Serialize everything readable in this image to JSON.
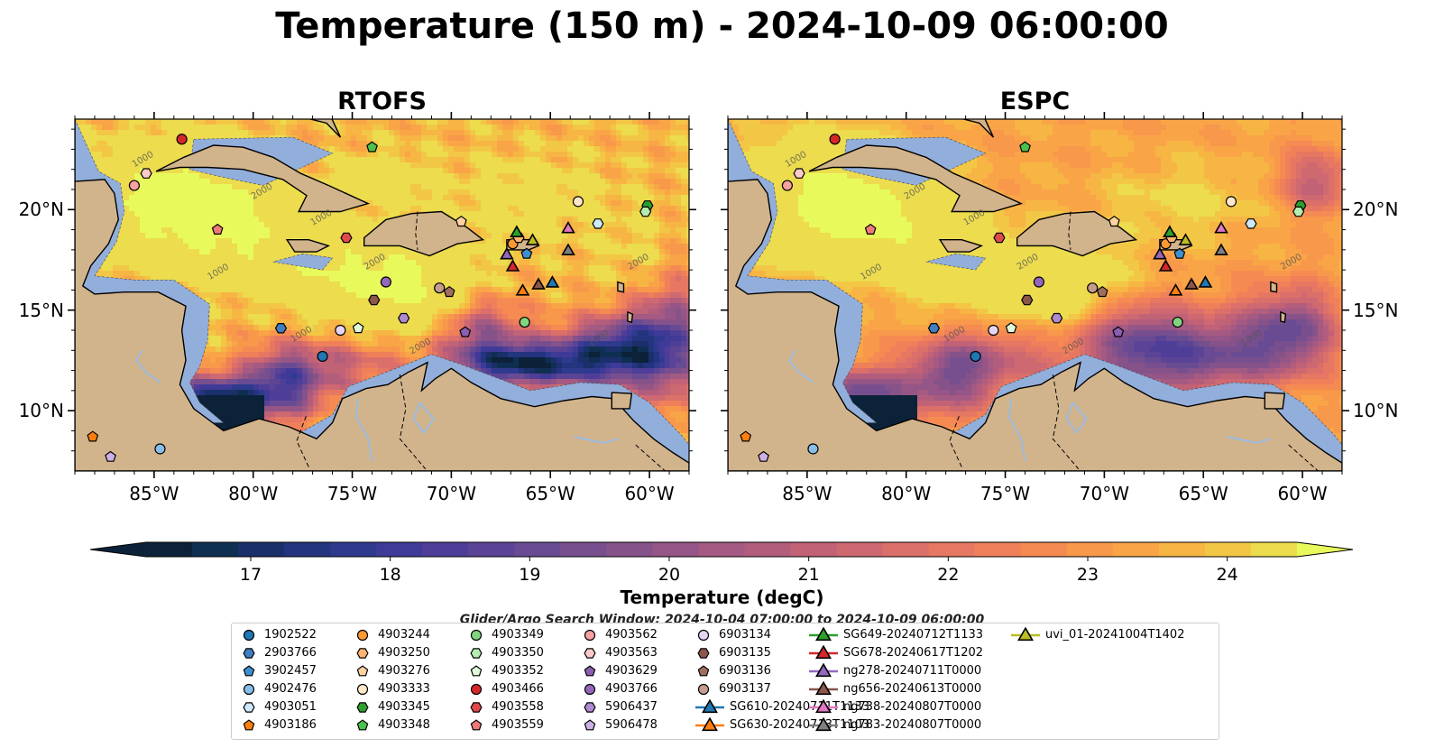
{
  "title": "Temperature (150 m) - 2024-10-09 06:00:00",
  "panels": [
    {
      "title": "RTOFS",
      "variant": "rtofs"
    },
    {
      "title": "ESPC",
      "variant": "espc"
    }
  ],
  "lat_labels": [
    "20°N",
    "15°N",
    "10°N"
  ],
  "lat_values": [
    20,
    15,
    10
  ],
  "lon_labels": [
    "85°W",
    "80°W",
    "75°W",
    "70°W",
    "65°W",
    "60°W"
  ],
  "lon_values": [
    -85,
    -80,
    -75,
    -70,
    -65,
    -60
  ],
  "map_extent": {
    "lon": [
      -89,
      -58
    ],
    "lat": [
      7,
      24.5
    ]
  },
  "contour_labels": [
    "1000",
    "2000"
  ],
  "colorbar": {
    "label": "Temperature (degC)",
    "min": 16.25,
    "max": 24.5,
    "step": 0.25,
    "ticks": [
      17,
      18,
      19,
      20,
      21,
      22,
      23,
      24
    ],
    "tick_labels": [
      "17",
      "18",
      "19",
      "20",
      "21",
      "22",
      "23",
      "24"
    ],
    "colors": [
      "#0b2239",
      "#0f2f52",
      "#1b2f6b",
      "#24347f",
      "#2f3a8f",
      "#3f3a97",
      "#4f3e98",
      "#5b4496",
      "#694b93",
      "#784f8e",
      "#86528a",
      "#955586",
      "#a45a82",
      "#b35d7d",
      "#c16277",
      "#ce6871",
      "#db6f69",
      "#e67762",
      "#ef805a",
      "#f58b52",
      "#f8984b",
      "#f9a547",
      "#f7b544",
      "#f3c746",
      "#ecdc4e"
    ],
    "over_color": "#e8fa5b"
  },
  "search_window": "Glider/Argo Search Window: 2024-10-04 07:00:00 to 2024-10-09 06:00:00",
  "legend": [
    {
      "label": "1902522",
      "marker": "circle",
      "color": "#1f77b4"
    },
    {
      "label": "2903766",
      "marker": "hexagon",
      "color": "#3f7fc0"
    },
    {
      "label": "3902457",
      "marker": "pentagon",
      "color": "#3f8fd0"
    },
    {
      "label": "4902476",
      "marker": "circle",
      "color": "#88bde6"
    },
    {
      "label": "4903051",
      "marker": "hexagon",
      "color": "#cfe8fb"
    },
    {
      "label": "4903186",
      "marker": "pentagon",
      "color": "#ff7f0e"
    },
    {
      "label": "4903244",
      "marker": "circle",
      "color": "#ff9933"
    },
    {
      "label": "4903250",
      "marker": "hexagon",
      "color": "#ffb570"
    },
    {
      "label": "4903276",
      "marker": "pentagon",
      "color": "#ffd2a1"
    },
    {
      "label": "4903333",
      "marker": "circle",
      "color": "#ffe7c9"
    },
    {
      "label": "4903345",
      "marker": "hexagon",
      "color": "#2ca02c"
    },
    {
      "label": "4903348",
      "marker": "pentagon",
      "color": "#4cc24c"
    },
    {
      "label": "4903349",
      "marker": "circle",
      "color": "#7fd67f"
    },
    {
      "label": "4903350",
      "marker": "hexagon",
      "color": "#b5ecb0"
    },
    {
      "label": "4903352",
      "marker": "pentagon",
      "color": "#e0fbd9"
    },
    {
      "label": "4903466",
      "marker": "circle",
      "color": "#d62728"
    },
    {
      "label": "4903558",
      "marker": "hexagon",
      "color": "#e04a4a"
    },
    {
      "label": "4903559",
      "marker": "pentagon",
      "color": "#f07a7a"
    },
    {
      "label": "4903562",
      "marker": "circle",
      "color": "#f7a1a1"
    },
    {
      "label": "4903563",
      "marker": "hexagon",
      "color": "#fccaca"
    },
    {
      "label": "4903629",
      "marker": "pentagon",
      "color": "#8a5fb0"
    },
    {
      "label": "4903766",
      "marker": "circle",
      "color": "#9467bd"
    },
    {
      "label": "5906437",
      "marker": "hexagon",
      "color": "#b08ad0"
    },
    {
      "label": "5906478",
      "marker": "pentagon",
      "color": "#cdb0e4"
    },
    {
      "label": "6903134",
      "marker": "circle",
      "color": "#e6d4f5"
    },
    {
      "label": "6903135",
      "marker": "hexagon",
      "color": "#8c564b"
    },
    {
      "label": "6903136",
      "marker": "pentagon",
      "color": "#a06e5e"
    },
    {
      "label": "6903137",
      "marker": "circle",
      "color": "#c49c8f"
    },
    {
      "label": "SG610-20240711T1133",
      "marker": "triangle",
      "color": "#1f77b4"
    },
    {
      "label": "SG630-20240713T1103",
      "marker": "triangle",
      "color": "#ff7f0e"
    },
    {
      "label": "SG649-20240712T1133",
      "marker": "triangle",
      "color": "#2ca02c"
    },
    {
      "label": "SG678-20240617T1202",
      "marker": "triangle",
      "color": "#d62728"
    },
    {
      "label": "ng278-20240711T0000",
      "marker": "triangle",
      "color": "#9467bd"
    },
    {
      "label": "ng656-20240613T0000",
      "marker": "triangle",
      "color": "#8c564b"
    },
    {
      "label": "ng738-20240807T0000",
      "marker": "triangle",
      "color": "#e377c2"
    },
    {
      "label": "ng783-20240807T0000",
      "marker": "triangle",
      "color": "#7f7f7f"
    },
    {
      "label": "uvi_01-20241004T1402",
      "marker": "triangle",
      "color": "#bcbd22"
    }
  ],
  "floats": [
    {
      "id": "1902522",
      "lon": -76.5,
      "lat": 12.7
    },
    {
      "id": "2903766",
      "lon": -78.6,
      "lat": 14.1
    },
    {
      "id": "3902457",
      "lon": -66.2,
      "lat": 17.8
    },
    {
      "id": "4902476",
      "lon": -84.7,
      "lat": 8.1
    },
    {
      "id": "4903051",
      "lon": -62.6,
      "lat": 19.3
    },
    {
      "id": "4903186",
      "lon": -88.1,
      "lat": 8.7
    },
    {
      "id": "4903244",
      "lon": -66.9,
      "lat": 18.3
    },
    {
      "id": "4903250",
      "lon": -66.6,
      "lat": 18.6
    },
    {
      "id": "4903276",
      "lon": -69.5,
      "lat": 19.4
    },
    {
      "id": "4903333",
      "lon": -63.6,
      "lat": 20.4
    },
    {
      "id": "4903345",
      "lon": -60.1,
      "lat": 20.2
    },
    {
      "id": "4903348",
      "lon": -74.0,
      "lat": 23.1
    },
    {
      "id": "4903349",
      "lon": -66.3,
      "lat": 14.4
    },
    {
      "id": "4903350",
      "lon": -60.2,
      "lat": 19.9
    },
    {
      "id": "4903352",
      "lon": -74.7,
      "lat": 14.1
    },
    {
      "id": "4903466",
      "lon": -83.6,
      "lat": 23.5
    },
    {
      "id": "4903558",
      "lon": -75.3,
      "lat": 18.6
    },
    {
      "id": "4903559",
      "lon": -81.8,
      "lat": 19.0
    },
    {
      "id": "4903562",
      "lon": -86.0,
      "lat": 21.2
    },
    {
      "id": "4903563",
      "lon": -85.4,
      "lat": 21.8
    },
    {
      "id": "4903629",
      "lon": -69.3,
      "lat": 13.9
    },
    {
      "id": "4903766",
      "lon": -73.3,
      "lat": 16.4
    },
    {
      "id": "5906437",
      "lon": -72.4,
      "lat": 14.6
    },
    {
      "id": "5906478",
      "lon": -87.2,
      "lat": 7.7
    },
    {
      "id": "6903134",
      "lon": -75.6,
      "lat": 14.0
    },
    {
      "id": "6903135",
      "lon": -73.9,
      "lat": 15.5
    },
    {
      "id": "6903136",
      "lon": -70.1,
      "lat": 15.9
    },
    {
      "id": "6903137",
      "lon": -70.6,
      "lat": 16.1
    },
    {
      "id": "SG610-20240711T1133",
      "lon": -64.9,
      "lat": 16.4
    },
    {
      "id": "SG630-20240713T1103",
      "lon": -66.4,
      "lat": 16.0
    },
    {
      "id": "SG649-20240712T1133",
      "lon": -66.7,
      "lat": 18.9
    },
    {
      "id": "SG678-20240617T1202",
      "lon": -66.9,
      "lat": 17.2
    },
    {
      "id": "ng278-20240711T0000",
      "lon": -67.2,
      "lat": 17.8
    },
    {
      "id": "ng656-20240613T0000",
      "lon": -65.6,
      "lat": 16.3
    },
    {
      "id": "ng738-20240807T0000",
      "lon": -64.1,
      "lat": 19.1
    },
    {
      "id": "ng783-20240807T0000",
      "lon": -64.1,
      "lat": 18.0
    },
    {
      "id": "uvi_01-20241004T1402",
      "lon": -65.9,
      "lat": 18.5
    }
  ]
}
